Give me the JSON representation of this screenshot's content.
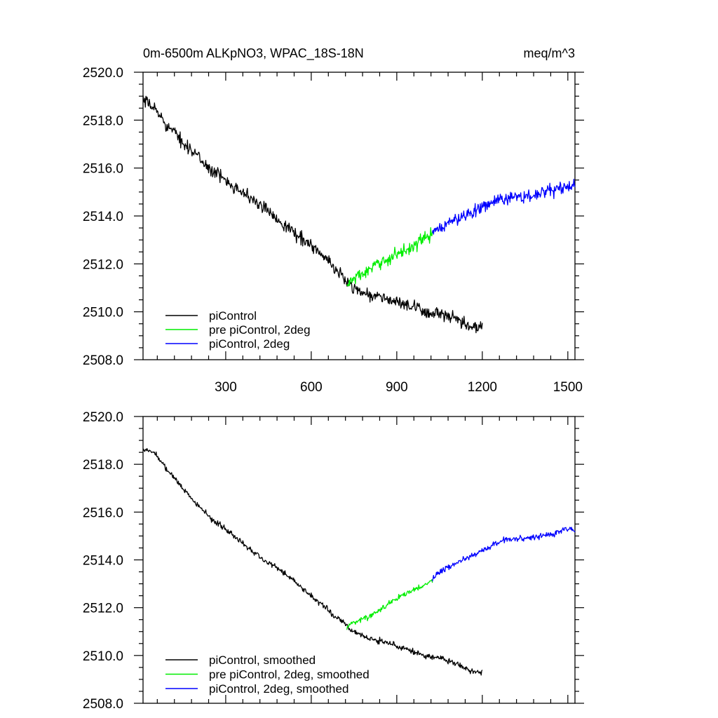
{
  "title_left": "0m-6500m ALKpNO3, WPAC_18S-18N",
  "title_right": "meq/m^3",
  "colors": {
    "black": "#000000",
    "green": "#00ee00",
    "blue": "#0000ff"
  },
  "chart_data": [
    {
      "type": "line",
      "panel": "top",
      "title": "0m-6500m ALKpNO3, WPAC_18S-18N",
      "units": "meq/m^3",
      "xlim": [
        10,
        1525
      ],
      "ylim": [
        2508,
        2520
      ],
      "xticks": [
        300,
        600,
        900,
        1200,
        1500
      ],
      "xtick_labels": [
        "300",
        "600",
        "900",
        "1200",
        "1500"
      ],
      "yticks": [
        2508,
        2510,
        2512,
        2514,
        2516,
        2518,
        2520
      ],
      "ytick_labels": [
        "2508.0",
        "2510.0",
        "2512.0",
        "2514.0",
        "2516.0",
        "2518.0",
        "2520.0"
      ],
      "legend_position": "bottom-left",
      "series": [
        {
          "name": "piControl",
          "color": "#000000",
          "noise": 0.22,
          "x": [
            10,
            50,
            100,
            150,
            200,
            250,
            300,
            350,
            400,
            450,
            500,
            550,
            600,
            650,
            700,
            750,
            800,
            850,
            900,
            950,
            1000,
            1050,
            1100,
            1150,
            1200
          ],
          "y": [
            2518.8,
            2518.5,
            2517.7,
            2517.1,
            2516.5,
            2515.9,
            2515.5,
            2515.1,
            2514.6,
            2514.2,
            2513.7,
            2513.2,
            2512.8,
            2512.2,
            2511.6,
            2511.0,
            2510.7,
            2510.6,
            2510.4,
            2510.2,
            2510.0,
            2509.9,
            2509.7,
            2509.4,
            2509.3
          ]
        },
        {
          "name": "pre piControl, 2deg",
          "color": "#00ee00",
          "noise": 0.22,
          "x": [
            725,
            750,
            800,
            850,
            900,
            950,
            1000,
            1025
          ],
          "y": [
            2511.1,
            2511.4,
            2511.7,
            2512.1,
            2512.4,
            2512.7,
            2513.1,
            2513.2
          ]
        },
        {
          "name": "piControl, 2deg",
          "color": "#0000ff",
          "noise": 0.22,
          "x": [
            1025,
            1050,
            1100,
            1150,
            1200,
            1250,
            1300,
            1350,
            1400,
            1450,
            1500,
            1525
          ],
          "y": [
            2513.2,
            2513.5,
            2513.8,
            2514.1,
            2514.4,
            2514.6,
            2514.8,
            2514.8,
            2514.9,
            2515.1,
            2515.2,
            2515.3
          ]
        }
      ]
    },
    {
      "type": "line",
      "panel": "bottom",
      "xlim": [
        10,
        1525
      ],
      "ylim": [
        2508,
        2520
      ],
      "xticks": [
        300,
        600,
        900,
        1200,
        1500
      ],
      "yticks": [
        2508,
        2510,
        2512,
        2514,
        2516,
        2518,
        2520
      ],
      "ytick_labels": [
        "2508.0",
        "2510.0",
        "2512.0",
        "2514.0",
        "2516.0",
        "2518.0",
        "2520.0"
      ],
      "legend_position": "bottom-left",
      "series": [
        {
          "name": "piControl, smoothed",
          "color": "#000000",
          "noise": 0.1,
          "x": [
            10,
            50,
            100,
            150,
            200,
            250,
            300,
            350,
            400,
            450,
            500,
            550,
            600,
            650,
            700,
            750,
            800,
            850,
            900,
            950,
            1000,
            1050,
            1100,
            1150,
            1200
          ],
          "y": [
            2518.6,
            2518.5,
            2517.7,
            2517.0,
            2516.3,
            2515.7,
            2515.3,
            2514.8,
            2514.3,
            2513.9,
            2513.5,
            2513.0,
            2512.5,
            2512.0,
            2511.5,
            2511.0,
            2510.7,
            2510.6,
            2510.4,
            2510.2,
            2510.0,
            2509.9,
            2509.7,
            2509.4,
            2509.3
          ]
        },
        {
          "name": "pre piControl, 2deg, smoothed",
          "color": "#00ee00",
          "noise": 0.1,
          "x": [
            725,
            750,
            800,
            850,
            900,
            950,
            1000,
            1025
          ],
          "y": [
            2511.2,
            2511.4,
            2511.6,
            2512.0,
            2512.4,
            2512.7,
            2513.0,
            2513.1
          ]
        },
        {
          "name": "piControl, 2deg, smoothed",
          "color": "#0000ff",
          "noise": 0.1,
          "x": [
            1025,
            1050,
            1100,
            1150,
            1200,
            1250,
            1300,
            1350,
            1400,
            1450,
            1500,
            1525
          ],
          "y": [
            2513.2,
            2513.5,
            2513.8,
            2514.1,
            2514.4,
            2514.7,
            2514.9,
            2514.9,
            2515.0,
            2515.1,
            2515.3,
            2515.3
          ]
        }
      ]
    }
  ]
}
